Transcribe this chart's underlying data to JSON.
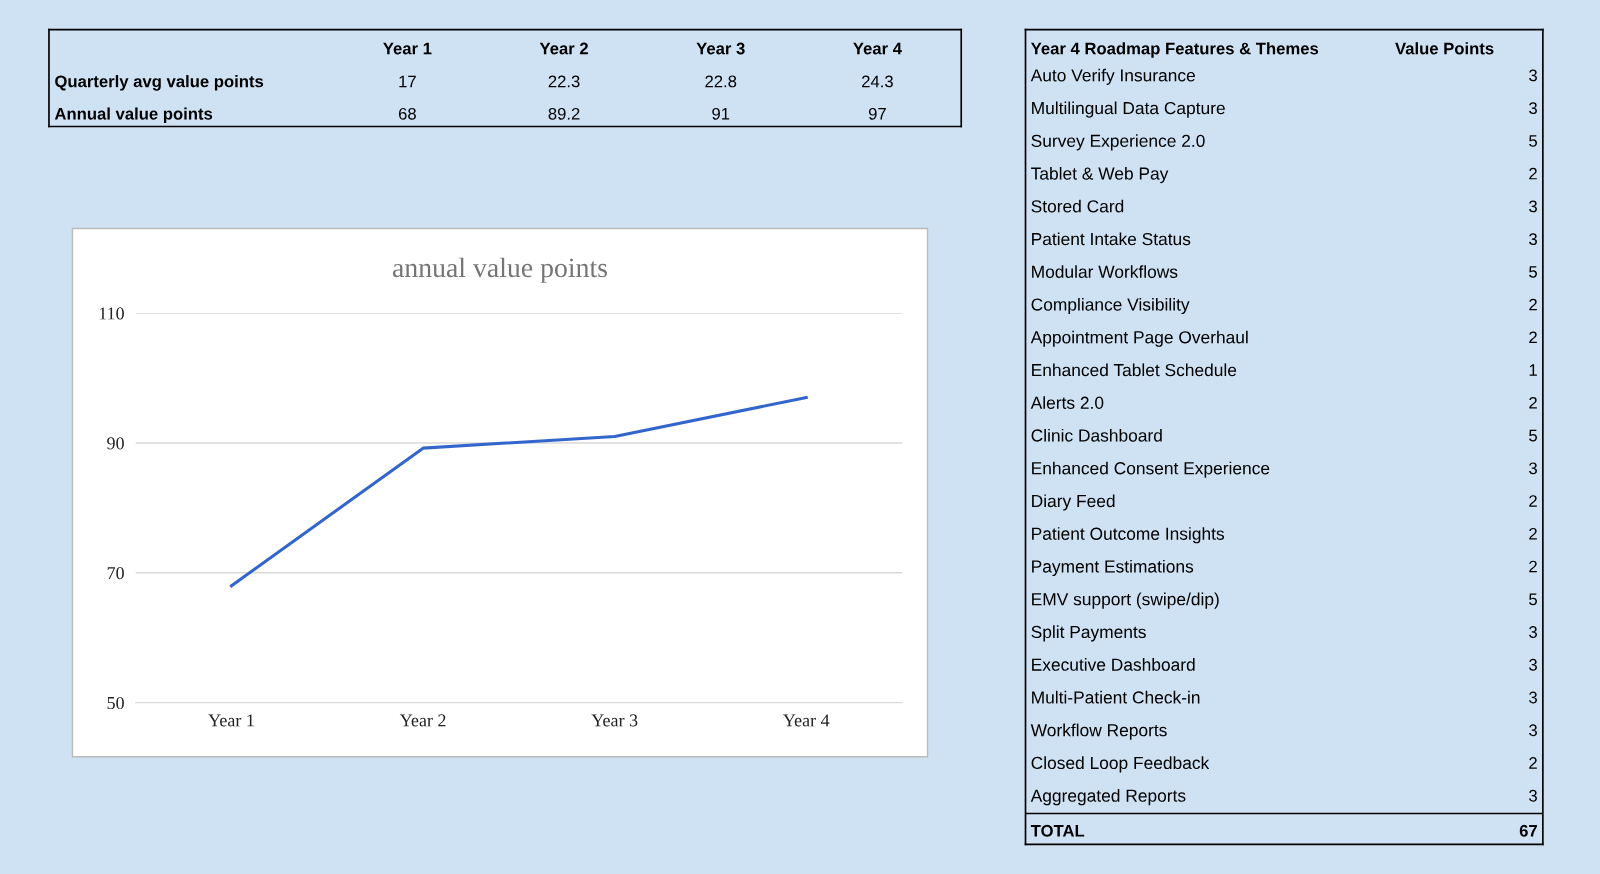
{
  "chart_data": [
    {
      "type": "other",
      "categories": [
        "Year 1",
        "Year 2",
        "Year 3",
        "Year 4"
      ],
      "data_labels": true,
      "series": [
        {
          "name": "Quarterly avg value points",
          "values": [
            17,
            22.3,
            22.8,
            24.3
          ]
        },
        {
          "name": "Annual value points",
          "values": [
            68,
            89.2,
            91,
            97
          ]
        }
      ]
    },
    {
      "type": "line",
      "title": "annual value points",
      "categories": [
        "Year 1",
        "Year 2",
        "Year 3",
        "Year 4"
      ],
      "series": [
        {
          "color": "#3366cc",
          "values": [
            68,
            89.2,
            91,
            97
          ]
        }
      ],
      "ylim": [
        50,
        110
      ],
      "yticks": [
        50,
        70,
        90,
        110
      ],
      "grid": "y",
      "marker": "none",
      "line_style": "solid"
    },
    {
      "type": "other",
      "title": "Year 4 Roadmap Features & Themes",
      "data_labels": true,
      "categories": [
        "Auto Verify Insurance",
        "Multilingual Data Capture",
        "Survey Experience 2.0",
        "Tablet & Web Pay",
        "Stored Card",
        "Patient Intake Status",
        "Modular Workflows",
        "Compliance Visibility",
        "Appointment Page Overhaul",
        "Enhanced Tablet Schedule",
        "Alerts 2.0",
        "Clinic Dashboard",
        "Enhanced Consent Experience",
        "Diary Feed",
        "Patient Outcome Insights",
        "Payment Estimations",
        "EMV support (swipe/dip)",
        "Split Payments",
        "Executive Dashboard",
        "Multi-Patient Check-in",
        "Workflow Reports",
        "Closed Loop Feedback",
        "Aggregated Reports",
        "TOTAL"
      ],
      "series": [
        {
          "name": "Value Points",
          "values": [
            3,
            3,
            5,
            2,
            3,
            3,
            5,
            2,
            2,
            1,
            2,
            5,
            3,
            2,
            2,
            2,
            5,
            3,
            3,
            3,
            3,
            2,
            3,
            67
          ]
        }
      ]
    }
  ]
}
